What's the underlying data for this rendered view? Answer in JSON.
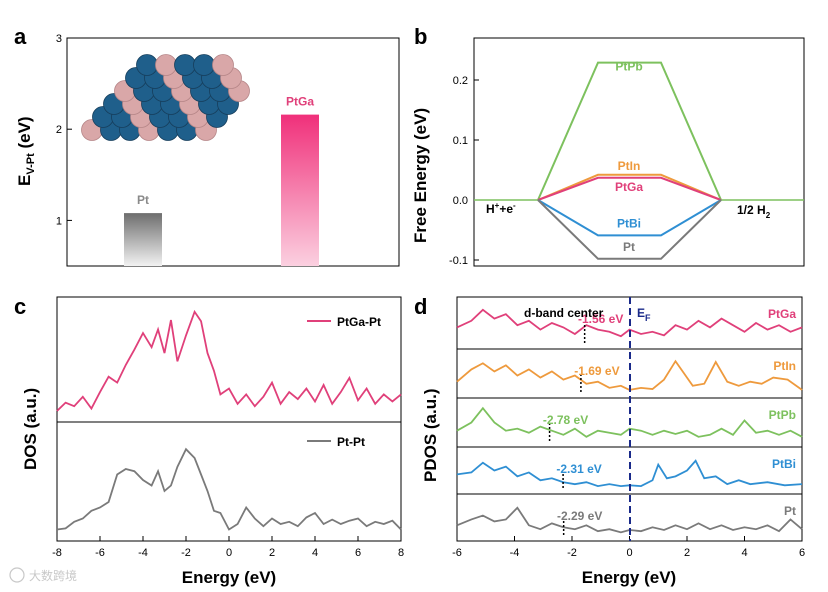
{
  "watermark": "大数跨境",
  "colors": {
    "pink": "#e0407a",
    "gray": "#7a7a7a",
    "green": "#7dc15e",
    "orange": "#ee9a3d",
    "blue": "#2f8fd3",
    "navy": "#1a2a8a"
  },
  "panels": {
    "a": {
      "label": "a",
      "ylabel_main": "E",
      "ylabel_sub": "V-Pt",
      "ylabel_unit": " (eV)",
      "inset_icon": "pt-ga-cluster-model",
      "chart_data": {
        "type": "bar",
        "categories": [
          "Pt",
          "PtGa"
        ],
        "values": [
          1.08,
          2.16
        ],
        "ylim": [
          0.5,
          3
        ],
        "yticks": [
          1,
          2,
          3
        ],
        "tick_labels": [
          "1",
          "2",
          "3"
        ],
        "bar_colors": [
          "gradient-gray",
          "gradient-pink"
        ]
      }
    },
    "b": {
      "label": "b",
      "chart_data": {
        "type": "line",
        "ylabel": "Free Energy (eV)",
        "ylim": [
          -0.11,
          0.27
        ],
        "yticks": [
          -0.1,
          0.0,
          0.1,
          0.2
        ],
        "tick_labels": [
          "-0.1",
          "0.0",
          "0.1",
          "0.2"
        ],
        "x_stage_labels": {
          "left_main": "H",
          "left_sup1": "+",
          "left_mid": "+e",
          "left_sup2": "-",
          "right_main": "1/2 H",
          "right_sub": "2"
        },
        "series": [
          {
            "name": "PtPb",
            "color": "#7dc15e",
            "y": [
              0,
              0.229,
              0.229,
              0
            ]
          },
          {
            "name": "PtIn",
            "color": "#ee9a3d",
            "y": [
              0,
              0.042,
              0.042,
              0
            ]
          },
          {
            "name": "PtGa",
            "color": "#e0407a",
            "y": [
              0,
              0.037,
              0.037,
              0
            ]
          },
          {
            "name": "PtBi",
            "color": "#2f8fd3",
            "y": [
              0,
              -0.059,
              -0.059,
              0
            ]
          },
          {
            "name": "Pt",
            "color": "#7a7a7a",
            "y": [
              0,
              -0.098,
              -0.098,
              0
            ]
          }
        ]
      }
    },
    "c": {
      "label": "c",
      "chart_data": {
        "type": "line",
        "xlabel": "Energy (eV)",
        "ylabel": "DOS (a.u.)",
        "xlim": [
          -8,
          8
        ],
        "xticks": [
          -8,
          -6,
          -4,
          -2,
          0,
          2,
          4,
          6,
          8
        ],
        "tick_labels": [
          "-8",
          "-6",
          "-4",
          "-2",
          "0",
          "2",
          "4",
          "6",
          "8"
        ],
        "series": [
          {
            "name": "PtGa-Pt",
            "color": "#e0407a",
            "x": [
              -8,
              -7.6,
              -7.2,
              -6.8,
              -6.4,
              -6.0,
              -5.6,
              -5.2,
              -4.8,
              -4.4,
              -4.0,
              -3.6,
              -3.3,
              -3.0,
              -2.7,
              -2.4,
              -2.0,
              -1.6,
              -1.3,
              -1.0,
              -0.7,
              -0.4,
              0,
              0.4,
              0.8,
              1.2,
              1.6,
              2.0,
              2.4,
              2.8,
              3.2,
              3.6,
              4.0,
              4.4,
              4.8,
              5.2,
              5.6,
              6.0,
              6.4,
              6.8,
              7.2,
              7.6,
              8.0
            ],
            "y": [
              0.06,
              0.13,
              0.1,
              0.18,
              0.08,
              0.22,
              0.35,
              0.3,
              0.45,
              0.58,
              0.72,
              0.6,
              0.75,
              0.55,
              0.83,
              0.48,
              0.7,
              0.9,
              0.82,
              0.55,
              0.4,
              0.2,
              0.25,
              0.12,
              0.2,
              0.1,
              0.18,
              0.3,
              0.12,
              0.22,
              0.16,
              0.25,
              0.14,
              0.28,
              0.12,
              0.22,
              0.34,
              0.15,
              0.25,
              0.12,
              0.2,
              0.14,
              0.2
            ]
          },
          {
            "name": "Pt-Pt",
            "color": "#7a7a7a",
            "x": [
              -8,
              -7.6,
              -7.2,
              -6.8,
              -6.4,
              -6.0,
              -5.6,
              -5.2,
              -4.8,
              -4.4,
              -4.0,
              -3.6,
              -3.3,
              -3.0,
              -2.7,
              -2.4,
              -2.0,
              -1.6,
              -1.3,
              -1.0,
              -0.7,
              -0.4,
              0,
              0.4,
              0.8,
              1.2,
              1.6,
              2.0,
              2.4,
              2.8,
              3.2,
              3.6,
              4.0,
              4.4,
              4.8,
              5.2,
              5.6,
              6.0,
              6.4,
              6.8,
              7.2,
              7.6,
              8.0
            ],
            "y": [
              0.05,
              0.06,
              0.12,
              0.15,
              0.22,
              0.25,
              0.3,
              0.55,
              0.6,
              0.58,
              0.5,
              0.45,
              0.58,
              0.4,
              0.45,
              0.62,
              0.78,
              0.7,
              0.55,
              0.4,
              0.22,
              0.2,
              0.05,
              0.1,
              0.25,
              0.15,
              0.08,
              0.15,
              0.1,
              0.12,
              0.08,
              0.16,
              0.2,
              0.1,
              0.14,
              0.1,
              0.13,
              0.15,
              0.08,
              0.12,
              0.1,
              0.13,
              0.05
            ]
          }
        ]
      }
    },
    "d": {
      "label": "d",
      "chart_data": {
        "type": "line",
        "xlabel": "Energy (eV)",
        "ylabel": "PDOS (a.u.)",
        "xlim": [
          -6,
          6
        ],
        "xticks": [
          -6,
          -4,
          -2,
          0,
          2,
          4,
          6
        ],
        "tick_labels": [
          "-6",
          "-4",
          "-2",
          "0",
          "2",
          "4",
          "6"
        ],
        "fermi_main": "E",
        "fermi_sub": "F",
        "band_center_label": "d-band center",
        "series": [
          {
            "name": "PtGa",
            "color": "#e0407a",
            "d_band_center": -1.56,
            "center_label": "-1.56 eV",
            "x": [
              -6,
              -5.5,
              -5.1,
              -4.7,
              -4.3,
              -3.9,
              -3.5,
              -3.1,
              -2.7,
              -2.3,
              -1.9,
              -1.5,
              -1.1,
              -0.7,
              -0.3,
              0,
              0.4,
              0.8,
              1.2,
              1.6,
              2.0,
              2.4,
              2.8,
              3.2,
              3.6,
              4.0,
              4.4,
              4.8,
              5.2,
              5.6,
              6.0
            ],
            "y": [
              0.4,
              0.55,
              0.8,
              0.6,
              0.7,
              0.45,
              0.55,
              0.35,
              0.5,
              0.4,
              0.25,
              0.45,
              0.35,
              0.3,
              0.2,
              0.35,
              0.25,
              0.3,
              0.22,
              0.45,
              0.35,
              0.55,
              0.4,
              0.6,
              0.45,
              0.3,
              0.5,
              0.35,
              0.45,
              0.3,
              0.4
            ]
          },
          {
            "name": "PtIn",
            "color": "#ee9a3d",
            "d_band_center": -1.69,
            "center_label": "-1.69 eV",
            "x": [
              -6,
              -5.5,
              -5.1,
              -4.7,
              -4.3,
              -3.9,
              -3.5,
              -3.1,
              -2.7,
              -2.3,
              -1.9,
              -1.5,
              -1.1,
              -0.7,
              -0.3,
              0,
              0.4,
              0.8,
              1.2,
              1.6,
              1.9,
              2.2,
              2.6,
              3.0,
              3.4,
              3.8,
              4.2,
              4.6,
              5.0,
              5.5,
              6.0
            ],
            "y": [
              0.3,
              0.6,
              0.75,
              0.55,
              0.7,
              0.45,
              0.6,
              0.4,
              0.55,
              0.35,
              0.45,
              0.25,
              0.3,
              0.15,
              0.2,
              0.1,
              0.15,
              0.12,
              0.35,
              0.8,
              0.5,
              0.2,
              0.25,
              0.78,
              0.3,
              0.2,
              0.3,
              0.25,
              0.4,
              0.35,
              0.1
            ]
          },
          {
            "name": "PtPb",
            "color": "#7dc15e",
            "d_band_center": -2.78,
            "center_label": "-2.78 eV",
            "x": [
              -6,
              -5.5,
              -5.1,
              -4.7,
              -4.3,
              -3.9,
              -3.5,
              -3.1,
              -2.7,
              -2.3,
              -1.9,
              -1.5,
              -1.1,
              -0.7,
              -0.3,
              0,
              0.4,
              0.8,
              1.2,
              1.6,
              2.0,
              2.4,
              2.8,
              3.2,
              3.6,
              4.0,
              4.4,
              4.8,
              5.2,
              5.6,
              6.0
            ],
            "y": [
              0.3,
              0.5,
              0.85,
              0.5,
              0.3,
              0.35,
              0.25,
              0.4,
              0.3,
              0.2,
              0.35,
              0.15,
              0.3,
              0.25,
              0.2,
              0.35,
              0.3,
              0.2,
              0.3,
              0.22,
              0.3,
              0.15,
              0.2,
              0.35,
              0.2,
              0.55,
              0.25,
              0.3,
              0.2,
              0.3,
              0.15
            ]
          },
          {
            "name": "PtBi",
            "color": "#2f8fd3",
            "d_band_center": -2.31,
            "center_label": "-2.31 eV",
            "x": [
              -6,
              -5.5,
              -5.1,
              -4.7,
              -4.3,
              -3.9,
              -3.5,
              -3.1,
              -2.7,
              -2.3,
              -1.9,
              -1.5,
              -1.1,
              -0.7,
              -0.3,
              0,
              0.4,
              0.8,
              1.0,
              1.3,
              1.6,
              2.0,
              2.3,
              2.6,
              3.0,
              3.4,
              3.8,
              4.2,
              4.8,
              5.4,
              6.0
            ],
            "y": [
              0.4,
              0.45,
              0.7,
              0.5,
              0.6,
              0.35,
              0.45,
              0.25,
              0.3,
              0.2,
              0.15,
              0.2,
              0.1,
              0.15,
              0.1,
              0.12,
              0.1,
              0.25,
              0.65,
              0.3,
              0.35,
              0.5,
              0.75,
              0.3,
              0.35,
              0.15,
              0.25,
              0.15,
              0.2,
              0.12,
              0.15
            ]
          },
          {
            "name": "Pt",
            "color": "#7a7a7a",
            "d_band_center": -2.29,
            "center_label": "-2.29 eV",
            "x": [
              -6,
              -5.5,
              -5.1,
              -4.7,
              -4.3,
              -3.9,
              -3.5,
              -3.1,
              -2.7,
              -2.3,
              -1.9,
              -1.5,
              -1.1,
              -0.7,
              -0.3,
              0,
              0.4,
              0.8,
              1.2,
              1.6,
              2.0,
              2.4,
              2.8,
              3.2,
              3.6,
              4.0,
              4.4,
              4.8,
              5.2,
              5.6,
              6.0
            ],
            "y": [
              0.3,
              0.45,
              0.55,
              0.4,
              0.45,
              0.75,
              0.3,
              0.2,
              0.35,
              0.25,
              0.2,
              0.3,
              0.15,
              0.2,
              0.12,
              0.18,
              0.15,
              0.25,
              0.18,
              0.3,
              0.2,
              0.35,
              0.2,
              0.3,
              0.18,
              0.25,
              0.2,
              0.3,
              0.15,
              0.45,
              0.2
            ]
          }
        ]
      }
    }
  }
}
